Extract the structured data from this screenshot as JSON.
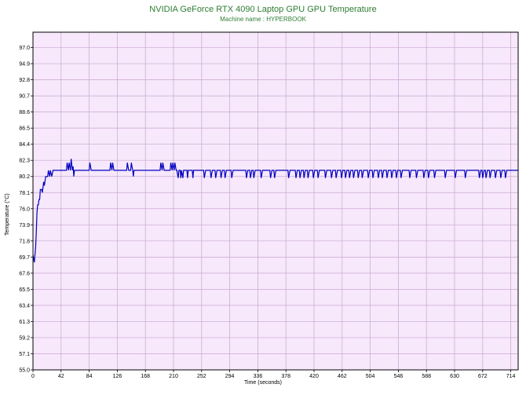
{
  "chart_data": {
    "type": "line",
    "title": "NVIDIA GeForce RTX 4090 Laptop GPU GPU Temperature",
    "subtitle": "Machine name : HYPERBOOK",
    "xlabel": "Time (seconds)",
    "ylabel": "Temperature (°C)",
    "xlim": [
      0,
      725
    ],
    "ylim": [
      55.0,
      99.0
    ],
    "x_ticks": [
      0,
      42,
      84,
      126,
      168,
      210,
      252,
      294,
      336,
      378,
      420,
      462,
      504,
      546,
      588,
      630,
      672,
      714
    ],
    "y_ticks": [
      "55.0",
      "57.1",
      "59.2",
      "61.3",
      "63.4",
      "65.5",
      "67.6",
      "69.7",
      "71.8",
      "73.9",
      "76.0",
      "78.1",
      "80.2",
      "82.3",
      "84.4",
      "86.5",
      "88.6",
      "90.7",
      "92.8",
      "94.9",
      "97.0"
    ],
    "grid": true,
    "colors": {
      "plot_background": "#f7e8fb",
      "grid": "#c8a8d0",
      "line": "#0000c0",
      "title": "#2e7d32"
    },
    "series": [
      {
        "name": "",
        "points": [
          [
            0,
            70.0
          ],
          [
            2,
            69.0
          ],
          [
            3,
            70.0
          ],
          [
            4,
            71.0
          ],
          [
            5,
            73.0
          ],
          [
            6,
            75.5
          ],
          [
            7,
            76.5
          ],
          [
            8,
            76.5
          ],
          [
            9,
            77.2
          ],
          [
            10,
            77.2
          ],
          [
            11,
            78.5
          ],
          [
            13,
            78.5
          ],
          [
            14,
            78.1
          ],
          [
            16,
            79.5
          ],
          [
            17,
            79.0
          ],
          [
            19,
            80.2
          ],
          [
            22,
            80.2
          ],
          [
            23,
            81.0
          ],
          [
            25,
            80.2
          ],
          [
            26,
            81.0
          ],
          [
            28,
            80.2
          ],
          [
            30,
            81.0
          ],
          [
            32,
            81.0
          ],
          [
            50,
            81.0
          ],
          [
            51,
            82.0
          ],
          [
            53,
            81.0
          ],
          [
            54,
            82.0
          ],
          [
            56,
            81.0
          ],
          [
            57,
            82.5
          ],
          [
            59,
            81.0
          ],
          [
            60,
            81.5
          ],
          [
            61,
            80.2
          ],
          [
            62,
            81.0
          ],
          [
            84,
            81.0
          ],
          [
            85,
            82.0
          ],
          [
            87,
            81.0
          ],
          [
            115,
            81.0
          ],
          [
            116,
            82.0
          ],
          [
            118,
            81.0
          ],
          [
            119,
            82.0
          ],
          [
            121,
            81.0
          ],
          [
            140,
            81.0
          ],
          [
            141,
            82.0
          ],
          [
            143,
            81.0
          ],
          [
            146,
            81.0
          ],
          [
            147,
            82.0
          ],
          [
            149,
            81.0
          ],
          [
            150,
            80.2
          ],
          [
            151,
            81.0
          ],
          [
            190,
            81.0
          ],
          [
            191,
            82.0
          ],
          [
            193,
            81.0
          ],
          [
            194,
            82.0
          ],
          [
            196,
            81.0
          ],
          [
            205,
            81.0
          ],
          [
            206,
            82.0
          ],
          [
            208,
            81.0
          ],
          [
            209,
            82.0
          ],
          [
            211,
            81.0
          ],
          [
            212,
            82.0
          ],
          [
            214,
            81.0
          ],
          [
            215,
            81.0
          ],
          [
            217,
            80.0
          ],
          [
            218,
            81.0
          ],
          [
            220,
            81.0
          ],
          [
            221,
            80.0
          ],
          [
            222,
            81.0
          ],
          [
            224,
            80.0
          ],
          [
            225,
            81.0
          ],
          [
            230,
            81.0
          ],
          [
            231,
            80.0
          ],
          [
            232,
            81.0
          ],
          [
            238,
            81.0
          ],
          [
            239,
            80.0
          ],
          [
            240,
            81.0
          ],
          [
            255,
            81.0
          ],
          [
            256,
            80.0
          ],
          [
            258,
            81.0
          ],
          [
            265,
            81.0
          ],
          [
            266,
            80.0
          ],
          [
            268,
            81.0
          ],
          [
            272,
            81.0
          ],
          [
            273,
            80.0
          ],
          [
            275,
            81.0
          ],
          [
            280,
            81.0
          ],
          [
            281,
            80.0
          ],
          [
            283,
            81.0
          ],
          [
            286,
            81.0
          ],
          [
            287,
            80.0
          ],
          [
            289,
            81.0
          ],
          [
            296,
            81.0
          ],
          [
            297,
            80.0
          ],
          [
            299,
            81.0
          ],
          [
            318,
            81.0
          ],
          [
            319,
            80.0
          ],
          [
            321,
            81.0
          ],
          [
            324,
            81.0
          ],
          [
            325,
            80.0
          ],
          [
            327,
            81.0
          ],
          [
            329,
            81.0
          ],
          [
            330,
            80.0
          ],
          [
            332,
            81.0
          ],
          [
            340,
            81.0
          ],
          [
            341,
            80.0
          ],
          [
            343,
            81.0
          ],
          [
            354,
            81.0
          ],
          [
            355,
            80.0
          ],
          [
            357,
            81.0
          ],
          [
            360,
            81.0
          ],
          [
            361,
            80.0
          ],
          [
            363,
            81.0
          ],
          [
            381,
            81.0
          ],
          [
            382,
            80.0
          ],
          [
            384,
            81.0
          ],
          [
            392,
            81.0
          ],
          [
            393,
            80.0
          ],
          [
            395,
            81.0
          ],
          [
            398,
            81.0
          ],
          [
            399,
            80.0
          ],
          [
            401,
            81.0
          ],
          [
            404,
            81.0
          ],
          [
            405,
            80.0
          ],
          [
            407,
            81.0
          ],
          [
            410,
            81.0
          ],
          [
            411,
            80.0
          ],
          [
            413,
            81.0
          ],
          [
            418,
            81.0
          ],
          [
            419,
            80.0
          ],
          [
            421,
            81.0
          ],
          [
            425,
            81.0
          ],
          [
            426,
            80.0
          ],
          [
            428,
            81.0
          ],
          [
            436,
            81.0
          ],
          [
            437,
            80.0
          ],
          [
            439,
            81.0
          ],
          [
            445,
            81.0
          ],
          [
            446,
            80.0
          ],
          [
            448,
            81.0
          ],
          [
            452,
            81.0
          ],
          [
            453,
            80.0
          ],
          [
            455,
            81.0
          ],
          [
            460,
            81.0
          ],
          [
            461,
            80.0
          ],
          [
            463,
            81.0
          ],
          [
            466,
            81.0
          ],
          [
            467,
            80.0
          ],
          [
            469,
            81.0
          ],
          [
            472,
            81.0
          ],
          [
            473,
            80.0
          ],
          [
            475,
            81.0
          ],
          [
            478,
            81.0
          ],
          [
            479,
            80.0
          ],
          [
            481,
            81.0
          ],
          [
            485,
            81.0
          ],
          [
            486,
            80.0
          ],
          [
            488,
            81.0
          ],
          [
            491,
            81.0
          ],
          [
            492,
            80.0
          ],
          [
            494,
            81.0
          ],
          [
            500,
            81.0
          ],
          [
            501,
            80.0
          ],
          [
            503,
            81.0
          ],
          [
            507,
            81.0
          ],
          [
            508,
            80.0
          ],
          [
            510,
            81.0
          ],
          [
            515,
            81.0
          ],
          [
            516,
            80.0
          ],
          [
            518,
            81.0
          ],
          [
            521,
            81.0
          ],
          [
            522,
            80.0
          ],
          [
            524,
            81.0
          ],
          [
            528,
            81.0
          ],
          [
            529,
            80.0
          ],
          [
            531,
            81.0
          ],
          [
            535,
            81.0
          ],
          [
            536,
            80.0
          ],
          [
            538,
            81.0
          ],
          [
            542,
            81.0
          ],
          [
            543,
            80.0
          ],
          [
            545,
            81.0
          ],
          [
            549,
            81.0
          ],
          [
            550,
            80.0
          ],
          [
            552,
            81.0
          ],
          [
            562,
            81.0
          ],
          [
            563,
            80.0
          ],
          [
            565,
            81.0
          ],
          [
            572,
            81.0
          ],
          [
            573,
            80.0
          ],
          [
            575,
            81.0
          ],
          [
            583,
            81.0
          ],
          [
            584,
            80.0
          ],
          [
            586,
            81.0
          ],
          [
            590,
            81.0
          ],
          [
            591,
            80.0
          ],
          [
            593,
            81.0
          ],
          [
            599,
            81.0
          ],
          [
            600,
            80.0
          ],
          [
            602,
            81.0
          ],
          [
            615,
            81.0
          ],
          [
            616,
            80.0
          ],
          [
            618,
            81.0
          ],
          [
            630,
            81.0
          ],
          [
            631,
            80.0
          ],
          [
            633,
            81.0
          ],
          [
            645,
            81.0
          ],
          [
            646,
            80.0
          ],
          [
            648,
            81.0
          ],
          [
            666,
            81.0
          ],
          [
            667,
            80.0
          ],
          [
            669,
            81.0
          ],
          [
            671,
            81.0
          ],
          [
            672,
            80.0
          ],
          [
            674,
            81.0
          ],
          [
            676,
            81.0
          ],
          [
            677,
            80.0
          ],
          [
            679,
            81.0
          ],
          [
            682,
            81.0
          ],
          [
            683,
            80.0
          ],
          [
            685,
            81.0
          ],
          [
            690,
            81.0
          ],
          [
            691,
            80.0
          ],
          [
            693,
            81.0
          ],
          [
            698,
            81.0
          ],
          [
            699,
            80.0
          ],
          [
            701,
            81.0
          ],
          [
            705,
            81.0
          ],
          [
            706,
            80.0
          ],
          [
            708,
            81.0
          ],
          [
            725,
            81.0
          ]
        ]
      }
    ]
  }
}
